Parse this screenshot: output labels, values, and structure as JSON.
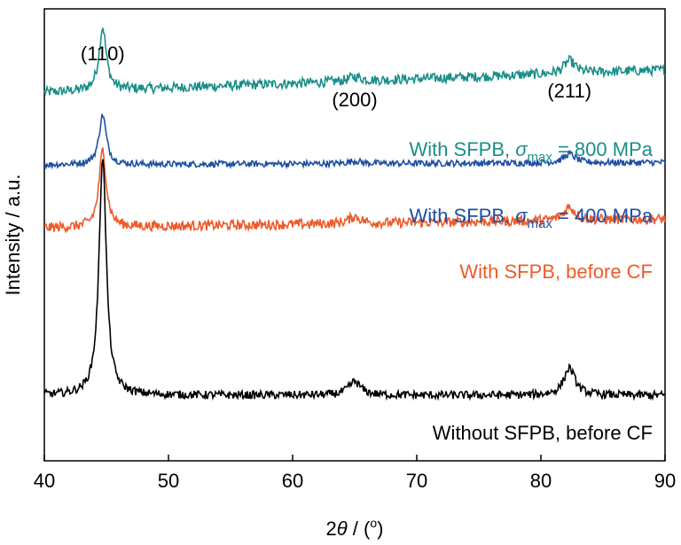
{
  "chart_data": {
    "type": "line",
    "title": "",
    "xlabel": {
      "prefix": "2",
      "symbol": "θ",
      "suffix": " / (",
      "sup": "o",
      "close": ")"
    },
    "ylabel": "Intensity / a.u.",
    "xlim": [
      40,
      90
    ],
    "xticks": [
      40,
      50,
      60,
      70,
      80,
      90
    ],
    "y_axis_ticks": false,
    "grid": false,
    "peak_annotations": [
      {
        "label": "(110)",
        "x": 44.7
      },
      {
        "label": "(200)",
        "x": 65.0
      },
      {
        "label": "(211)",
        "x": 82.3
      }
    ],
    "peaks_2theta": [
      44.7,
      65.0,
      82.3
    ],
    "series": [
      {
        "name_parts": {
          "lead": "With SFPB, ",
          "symbol": "σ",
          "sub": "max",
          "tail": " = 800 MPa"
        },
        "color": "#1a8f8a",
        "baseline_start": 0.815,
        "baseline_end": 0.865,
        "peak_heights": [
          0.14,
          0.01,
          0.028
        ],
        "noise": 0.011
      },
      {
        "name_parts": {
          "lead": "With SFPB, ",
          "symbol": "σ",
          "sub": "max",
          "tail": " = 400 MPa"
        },
        "color": "#1f4fa3",
        "baseline_start": 0.655,
        "baseline_end": 0.66,
        "peak_heights": [
          0.11,
          0.006,
          0.02
        ],
        "noise": 0.007
      },
      {
        "name_parts": {
          "lead": "With SFPB, before CF",
          "symbol": "",
          "sub": "",
          "tail": ""
        },
        "color": "#ee5a2a",
        "baseline_start": 0.515,
        "baseline_end": 0.535,
        "peak_heights": [
          0.17,
          0.015,
          0.03
        ],
        "noise": 0.011
      },
      {
        "name_parts": {
          "lead": "Without SFPB, before CF",
          "symbol": "",
          "sub": "",
          "tail": ""
        },
        "color": "#000000",
        "baseline_start": 0.145,
        "baseline_end": 0.145,
        "peak_heights": [
          0.53,
          0.03,
          0.06
        ],
        "noise": 0.009
      }
    ]
  }
}
